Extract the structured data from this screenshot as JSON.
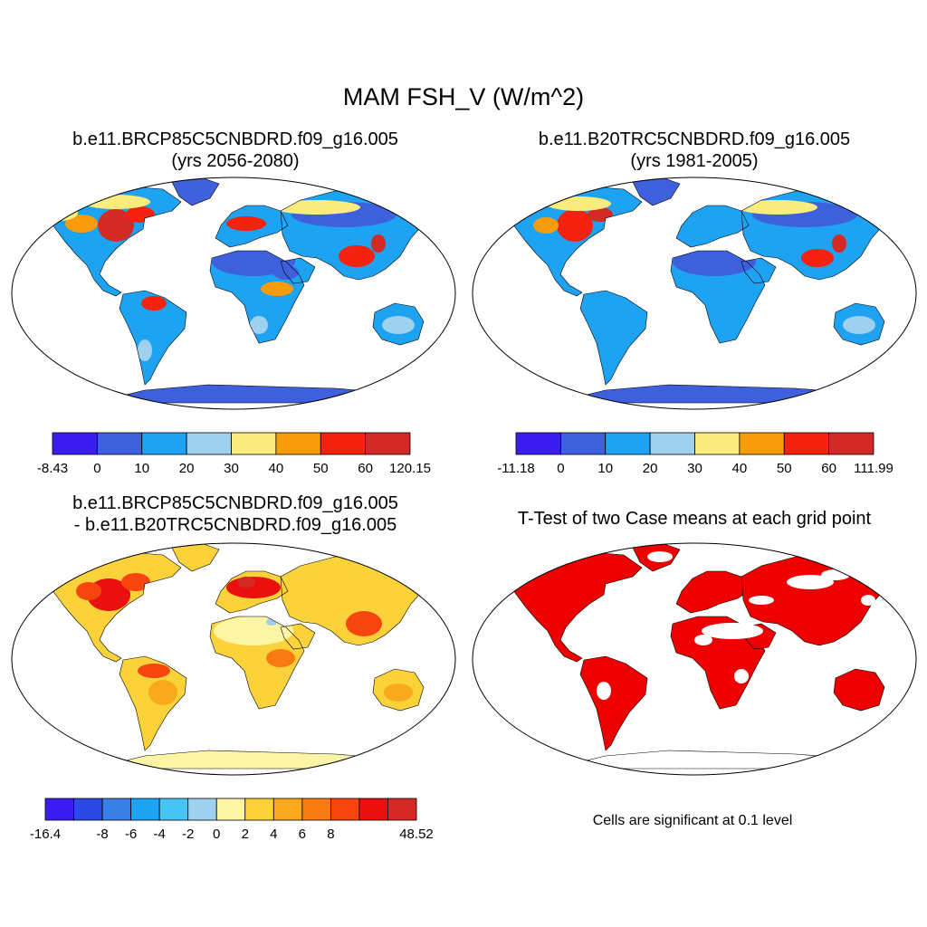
{
  "title": "MAM FSH_V (W/m^2)",
  "panels": [
    {
      "title_line1": "b.e11.BRCP85C5CNBDRD.f09_g16.005",
      "title_line2": "(yrs 2056-2080)",
      "colorbar": {
        "colors": [
          "#3a1cf0",
          "#3f60dc",
          "#1ea2f2",
          "#9fd0ee",
          "#fbec7e",
          "#f99c0c",
          "#f4220f",
          "#d42a26"
        ],
        "labels": [
          "-8.43",
          "0",
          "10",
          "20",
          "30",
          "40",
          "50",
          "60",
          "120.15"
        ]
      }
    },
    {
      "title_line1": "b.e11.B20TRC5CNBDRD.f09_g16.005",
      "title_line2": "(yrs 1981-2005)",
      "colorbar": {
        "colors": [
          "#3a1cf0",
          "#3f60dc",
          "#1ea2f2",
          "#9fd0ee",
          "#fbec7e",
          "#f99c0c",
          "#f4220f",
          "#d42a26"
        ],
        "labels": [
          "-11.18",
          "0",
          "10",
          "20",
          "30",
          "40",
          "50",
          "60",
          "111.99"
        ]
      }
    },
    {
      "title_line1": "b.e11.BRCP85C5CNBDRD.f09_g16.005",
      "title_line2": "- b.e11.B20TRC5CNBDRD.f09_g16.005",
      "colorbar": {
        "colors": [
          "#3a1cf0",
          "#2a49e6",
          "#3a7ee8",
          "#1ea2f2",
          "#46c4f6",
          "#9fd0ee",
          "#fdf5a6",
          "#fbd23a",
          "#f9a91c",
          "#fa7a12",
          "#f6450e",
          "#ea1010",
          "#d42a26"
        ],
        "labels": [
          "-16.4",
          "",
          "-8",
          "-6",
          "-4",
          "-2",
          "0",
          "2",
          "4",
          "6",
          "8",
          "",
          "",
          "48.52"
        ]
      }
    },
    {
      "title_line1": "T-Test of two Case means at each grid point",
      "note": "Cells are significant at 0.1 level",
      "significant_color": "#ee0000"
    }
  ]
}
